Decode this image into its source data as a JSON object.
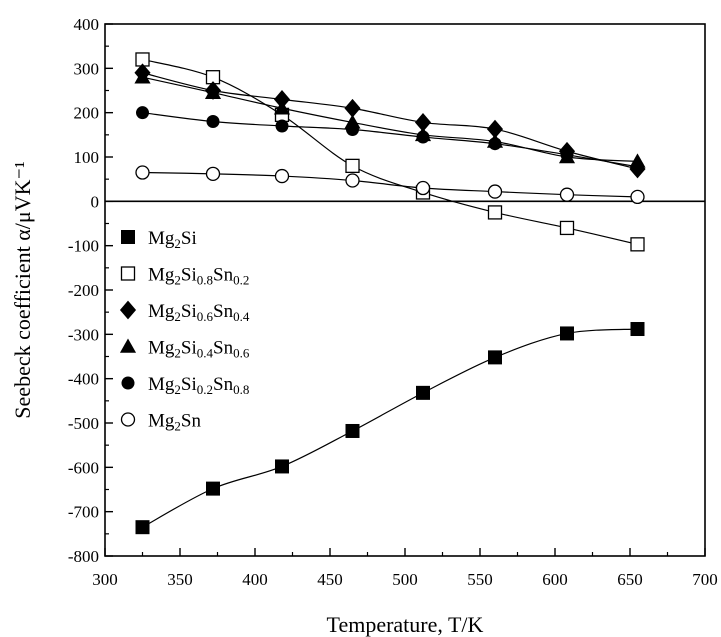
{
  "chart_data": {
    "type": "line",
    "xlabel": "Temperature, T/K",
    "ylabel": "Seebeck coefficient α/μVK⁻¹",
    "xlim": [
      300,
      700
    ],
    "ylim": [
      -800,
      400
    ],
    "xticks": [
      300,
      350,
      400,
      450,
      500,
      550,
      600,
      650,
      700
    ],
    "yticks": [
      -800,
      -700,
      -600,
      -500,
      -400,
      -300,
      -200,
      -100,
      0,
      100,
      200,
      300,
      400
    ],
    "zero_line": true,
    "grid": false,
    "legend_position": "left",
    "x": [
      325,
      372,
      418,
      465,
      512,
      560,
      608,
      655
    ],
    "series": [
      {
        "name": "Mg2Si",
        "legend": {
          "base1": "Mg",
          "sub1": "2",
          "base2": "Si"
        },
        "marker": "square-filled",
        "values": [
          -735,
          -648,
          -598,
          -518,
          -432,
          -352,
          -298,
          -288
        ]
      },
      {
        "name": "Mg2Si0.8Sn0.2",
        "legend": {
          "base1": "Mg",
          "sub1": "2",
          "base2": "Si",
          "sub2": "0.8",
          "base3": "Sn",
          "sub3": "0.2"
        },
        "marker": "square-open",
        "values": [
          320,
          280,
          195,
          80,
          20,
          -25,
          -60,
          -97
        ]
      },
      {
        "name": "Mg2Si0.6Sn0.4",
        "legend": {
          "base1": "Mg",
          "sub1": "2",
          "base2": "Si",
          "sub2": "0.6",
          "base3": "Sn",
          "sub3": "0.4"
        },
        "marker": "diamond-filled",
        "values": [
          290,
          250,
          230,
          210,
          178,
          163,
          113,
          73
        ]
      },
      {
        "name": "Mg2Si0.4Sn0.6",
        "legend": {
          "base1": "Mg",
          "sub1": "2",
          "base2": "Si",
          "sub2": "0.4",
          "base3": "Sn",
          "sub3": "0.6"
        },
        "marker": "triangle-filled",
        "values": [
          280,
          245,
          210,
          178,
          150,
          135,
          100,
          90
        ]
      },
      {
        "name": "Mg2Si0.2Sn0.8",
        "legend": {
          "base1": "Mg",
          "sub1": "2",
          "base2": "Si",
          "sub2": "0.2",
          "base3": "Sn",
          "sub3": "0.8"
        },
        "marker": "circle-filled",
        "values": [
          200,
          180,
          170,
          162,
          145,
          130,
          105,
          78
        ]
      },
      {
        "name": "Mg2Sn",
        "legend": {
          "base1": "Mg",
          "sub1": "2",
          "base2": "Sn"
        },
        "marker": "circle-open",
        "values": [
          65,
          62,
          57,
          47,
          30,
          22,
          15,
          10
        ]
      }
    ]
  }
}
